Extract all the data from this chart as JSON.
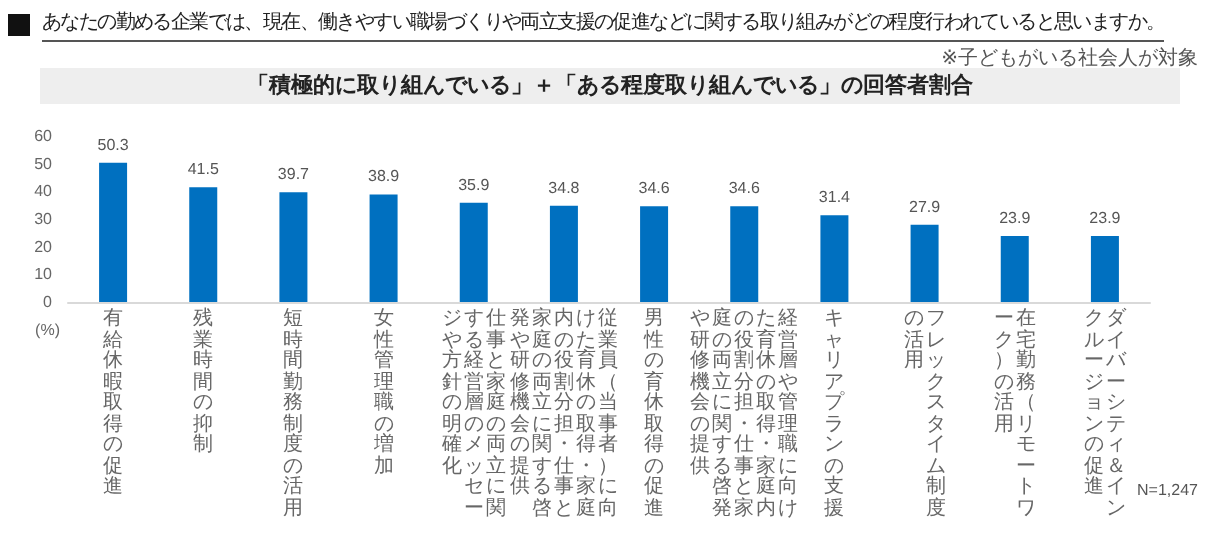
{
  "chart_data": {
    "type": "bar",
    "title": "あなたの勤める企業では、現在、働きやすい職場づくりや両立支援の促進などに関する取り組みがどの程度行われていると思いますか。",
    "subtitle": "「積極的に取り組んでいる」＋「ある程度取り組んでいる」の回答者割合",
    "annotations": [
      "※子どもがいる社会人が対象",
      "N=1,247"
    ],
    "ylabel": "(%)",
    "categories": [
      "有給休暇取得の促進",
      "残業時間の抑制",
      "短時間勤務制度の活用",
      "女性管理職の増加",
      "仕事と家庭の両立に関する経営層のメッセージや方針の明確化",
      "従業員（当事者）に向けた育休の取得・家庭内の役割分担・仕事と家庭の両立に関する啓発や研修機会の提供",
      "男性の育休取得の促進",
      "経営層や管理職に向けた育休の取得・家庭内の役割分担・仕事と家庭の両立に関する啓発や研修機会の提供",
      "キャリアプランの支援",
      "フレックスタイム制度の活用",
      "在宅勤務（リモートワーク）の活用",
      "ダイバーシティ＆インクルージョンの促進"
    ],
    "values": [
      50.3,
      41.5,
      39.7,
      38.9,
      35.9,
      34.8,
      34.6,
      34.6,
      31.4,
      27.9,
      23.9,
      23.9
    ],
    "color": "#0070c0",
    "data_labels": true,
    "grid": false,
    "ylim": [
      0,
      60
    ],
    "yticks": [
      0,
      10,
      20,
      30,
      40,
      50,
      60
    ]
  }
}
